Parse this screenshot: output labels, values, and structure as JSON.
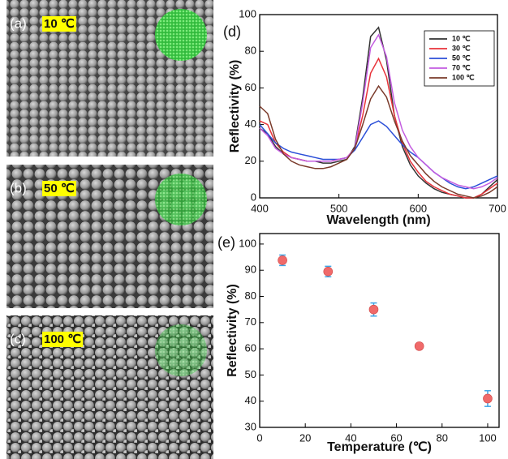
{
  "panels": [
    {
      "label": "(a)",
      "tag": "10 ℃"
    },
    {
      "label": "(b)",
      "tag": "50 ℃"
    },
    {
      "label": "(c)",
      "tag": "100 ℃"
    }
  ],
  "chart_data": [
    {
      "type": "line",
      "panel": "(d)",
      "xlabel": "Wavelength (nm)",
      "ylabel": "Reflectivity (%)",
      "xlim": [
        400,
        700
      ],
      "xticks": [
        400,
        500,
        600,
        700
      ],
      "ylim": [
        0,
        100
      ],
      "yticks": [
        0,
        20,
        40,
        60,
        80,
        100
      ],
      "grid": false,
      "legend": "upper right",
      "x": [
        400,
        410,
        420,
        430,
        440,
        450,
        460,
        470,
        480,
        490,
        500,
        510,
        520,
        530,
        540,
        550,
        560,
        570,
        580,
        590,
        600,
        610,
        620,
        630,
        640,
        650,
        660,
        670,
        680,
        690,
        700
      ],
      "series": [
        {
          "name": "10 ℃",
          "color": "#333333",
          "values": [
            38,
            35,
            28,
            24,
            22,
            21,
            20,
            20,
            19,
            19,
            20,
            21,
            28,
            55,
            88,
            93,
            75,
            45,
            28,
            18,
            12,
            8,
            5,
            3,
            2,
            1,
            0,
            0,
            2,
            6,
            10
          ]
        },
        {
          "name": "30 ℃",
          "color": "#e8333a",
          "values": [
            42,
            40,
            30,
            25,
            22,
            21,
            20,
            20,
            20,
            20,
            21,
            22,
            27,
            45,
            68,
            76,
            66,
            45,
            30,
            20,
            14,
            9,
            6,
            4,
            2,
            1,
            0,
            0,
            2,
            5,
            8
          ]
        },
        {
          "name": "50 ℃",
          "color": "#2b4fd8",
          "values": [
            40,
            35,
            30,
            27,
            25,
            24,
            23,
            22,
            21,
            21,
            21,
            22,
            26,
            33,
            40,
            42,
            39,
            34,
            29,
            25,
            22,
            18,
            14,
            11,
            8,
            6,
            5,
            6,
            8,
            10,
            12
          ]
        },
        {
          "name": "70 ℃",
          "color": "#c35ce0",
          "values": [
            38,
            34,
            27,
            24,
            22,
            21,
            20,
            20,
            20,
            20,
            21,
            22,
            27,
            52,
            82,
            89,
            77,
            52,
            37,
            28,
            22,
            18,
            14,
            11,
            9,
            7,
            6,
            5,
            6,
            8,
            11
          ]
        },
        {
          "name": "100 ℃",
          "color": "#7a3a2a",
          "values": [
            50,
            46,
            32,
            24,
            20,
            18,
            17,
            16,
            16,
            17,
            19,
            21,
            27,
            40,
            54,
            61,
            55,
            42,
            31,
            23,
            18,
            13,
            9,
            6,
            4,
            2,
            1,
            0,
            1,
            3,
            6
          ]
        }
      ]
    },
    {
      "type": "scatter",
      "panel": "(e)",
      "xlabel": "Temperature (℃)",
      "ylabel": "Reflectivity (%)",
      "xlim": [
        0,
        105
      ],
      "xticks": [
        0,
        20,
        40,
        60,
        80,
        100
      ],
      "ylim": [
        30,
        104
      ],
      "yticks": [
        30,
        40,
        50,
        60,
        70,
        80,
        90,
        100
      ],
      "grid": false,
      "color": "#f06a6a",
      "error_color": "#3ea5e6",
      "x": [
        10,
        30,
        50,
        70,
        100
      ],
      "values": [
        93.8,
        89.5,
        75,
        61,
        41
      ],
      "errors": [
        2,
        2,
        2.5,
        1,
        3
      ]
    }
  ]
}
